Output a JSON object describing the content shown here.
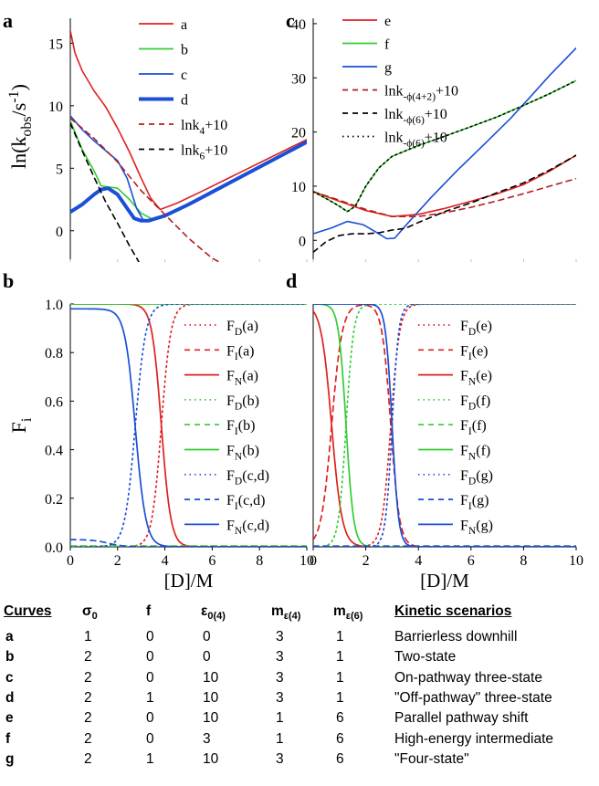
{
  "chart_data": [
    {
      "panel": "a",
      "type": "line",
      "ylabel": "ln(k",
      "ylabel_sub": "obs",
      "ylabel_tail": "/s",
      "ylabel_sup": "-1",
      "ylabel_close": ")",
      "xlim": [
        0,
        10
      ],
      "ylim": [
        -2.5,
        17
      ],
      "yticks": [
        "0",
        "5",
        "10",
        "15"
      ],
      "series": [
        {
          "name": "a",
          "color": "#e0201e",
          "dash": "solid",
          "width": 1.6,
          "x": [
            0,
            0.2,
            0.5,
            1,
            1.5,
            2,
            2.5,
            3,
            3.4,
            3.8,
            4.5,
            5.5,
            7,
            8.5,
            10
          ],
          "y": [
            16,
            14.2,
            12.8,
            11.2,
            9.9,
            8.2,
            6.3,
            4.2,
            2.6,
            1.7,
            2.2,
            3.1,
            4.5,
            5.9,
            7.3
          ]
        },
        {
          "name": "b",
          "color": "#33cc33",
          "dash": "solid",
          "width": 1.6,
          "x": [
            0,
            0.5,
            1,
            1.3,
            1.6,
            2.0,
            2.5,
            3,
            3.5,
            4,
            5,
            6,
            7,
            8.5,
            10
          ],
          "y": [
            8.8,
            6.5,
            4.8,
            3.6,
            3.5,
            3.4,
            2.5,
            1.4,
            0.9,
            1.2,
            2.2,
            3.1,
            4.1,
            5.6,
            7.1
          ]
        },
        {
          "name": "c",
          "color": "#1a4fd6",
          "dash": "solid",
          "width": 1.6,
          "x": [
            0,
            0.5,
            1,
            1.5,
            2,
            2.4,
            2.8,
            3.1,
            3.4,
            4,
            5,
            6,
            7,
            8.5,
            10
          ],
          "y": [
            9.2,
            8.1,
            7.2,
            6.4,
            5.6,
            4.2,
            1.8,
            0.8,
            0.8,
            1.2,
            2.1,
            3.1,
            4.1,
            5.6,
            7.1
          ]
        },
        {
          "name": "d",
          "color": "#1a4fd6",
          "dash": "solid",
          "width": 4,
          "x": [
            0,
            0.5,
            1,
            1.3,
            1.6,
            2,
            2.4,
            2.7,
            3,
            3.3,
            4,
            5,
            6,
            7,
            8.5,
            10
          ],
          "y": [
            1.5,
            2.1,
            2.9,
            3.3,
            3.4,
            2.9,
            1.8,
            1.0,
            0.8,
            0.8,
            1.2,
            2.1,
            3.1,
            4.1,
            5.6,
            7.1
          ]
        },
        {
          "name": "lnk₄+10",
          "color": "#b21f1f",
          "dash": "6,5",
          "width": 1.6,
          "x": [
            0,
            1,
            2,
            3,
            4,
            5,
            6,
            6.3
          ],
          "y": [
            9.0,
            7.4,
            5.5,
            3.2,
            1.3,
            -0.6,
            -2.2,
            -2.5
          ]
        },
        {
          "name": "lnk₆+10",
          "color": "#000000",
          "dash": "6,5",
          "width": 1.6,
          "x": [
            0,
            0.5,
            1,
            1.5,
            2,
            2.5,
            2.9
          ],
          "y": [
            8.6,
            6.4,
            4.3,
            2.3,
            0.6,
            -1.2,
            -2.5
          ]
        }
      ],
      "legend": [
        {
          "base": "a",
          "sub": "",
          "tail": ""
        },
        {
          "base": "b",
          "sub": "",
          "tail": ""
        },
        {
          "base": "c",
          "sub": "",
          "tail": ""
        },
        {
          "base": "d",
          "sub": "",
          "tail": ""
        },
        {
          "base": "lnk",
          "sub": "4",
          "tail": "+10"
        },
        {
          "base": "lnk",
          "sub": "6",
          "tail": "+10"
        }
      ]
    },
    {
      "panel": "c",
      "type": "line",
      "xlim": [
        0,
        10
      ],
      "ylim": [
        -4,
        41
      ],
      "yticks": [
        "0",
        "10",
        "20",
        "30",
        "40"
      ],
      "series": [
        {
          "name": "e",
          "color": "#e0201e",
          "dash": "solid",
          "width": 1.6,
          "x": [
            0,
            1,
            2,
            3,
            4,
            5,
            6,
            7,
            8,
            9,
            10
          ],
          "y": [
            9,
            7.2,
            5.5,
            4.4,
            4.8,
            5.9,
            7.2,
            8.6,
            10.3,
            12.8,
            15.7
          ]
        },
        {
          "name": "f",
          "color": "#33cc33",
          "dash": "solid",
          "width": 1.6,
          "x": [
            0,
            0.5,
            1,
            1.3,
            1.6,
            2,
            2.5,
            3,
            4,
            5,
            6,
            7,
            8,
            9,
            10
          ],
          "y": [
            9,
            7.7,
            6.3,
            5.3,
            6.3,
            10,
            13.4,
            15.5,
            17.5,
            19.2,
            21,
            22.8,
            24.9,
            27.1,
            29.5
          ]
        },
        {
          "name": "g",
          "color": "#1a4fd6",
          "dash": "solid",
          "width": 1.6,
          "x": [
            0,
            0.7,
            1.3,
            1.9,
            2.4,
            2.8,
            3.1,
            3.6,
            4.5,
            5.5,
            6.5,
            7.5,
            8.2,
            9,
            10
          ],
          "y": [
            1.2,
            2.3,
            3.5,
            2.9,
            1.5,
            0.3,
            0.4,
            3.2,
            8,
            13,
            17.7,
            22.5,
            26.2,
            30.5,
            35.5
          ]
        },
        {
          "name": "lnk-φ(4+2)+10",
          "color": "#b21f1f",
          "dash": "6,5",
          "width": 1.6,
          "x": [
            0,
            1,
            2,
            3,
            4,
            5,
            6,
            7,
            8,
            9,
            10
          ],
          "y": [
            9,
            7.4,
            5.7,
            4.4,
            4.4,
            5.1,
            6.1,
            7.3,
            8.6,
            10,
            11.4
          ]
        },
        {
          "name": "lnk-φ(6)+10",
          "color": "#000000",
          "dash": "6,5",
          "width": 1.6,
          "x": [
            0,
            0.5,
            1,
            1.5,
            2,
            2.5,
            3,
            3.5,
            4,
            5,
            6,
            7,
            8,
            9,
            10
          ],
          "y": [
            -2.2,
            -0.2,
            0.9,
            1.2,
            1.2,
            1.4,
            1.9,
            2.2,
            3.3,
            5.3,
            6.9,
            8.8,
            10.6,
            13,
            15.7
          ]
        },
        {
          "name": "lnk-φ(6)+10 (dotted)",
          "color": "#000000",
          "dash": "1.5,4",
          "width": 1.6,
          "x": [
            0,
            0.5,
            1,
            1.3,
            1.6,
            2,
            2.5,
            3,
            4,
            5,
            6,
            7,
            8,
            9,
            10
          ],
          "y": [
            9,
            7.7,
            6.3,
            5.3,
            6.3,
            10,
            13.4,
            15.5,
            17.5,
            19.2,
            21,
            22.8,
            24.9,
            27.1,
            29.5
          ]
        }
      ],
      "legend": [
        {
          "base": "e",
          "sub": "",
          "tail": ""
        },
        {
          "base": "f",
          "sub": "",
          "tail": ""
        },
        {
          "base": "g",
          "sub": "",
          "tail": ""
        },
        {
          "base": "lnk",
          "sub": "-ϕ(4+2)",
          "tail": "+10"
        },
        {
          "base": "lnk",
          "sub": "-ϕ(6)",
          "tail": "+10"
        },
        {
          "base": "lnk",
          "sub": "-ϕ(6)",
          "tail": "+10"
        }
      ]
    },
    {
      "panel": "b",
      "type": "line",
      "ylabel": "F",
      "ylabel_sub": "i",
      "xlabel": "[D]/M",
      "xlim": [
        0,
        10
      ],
      "ylim": [
        0,
        1
      ],
      "xticks": [
        "0",
        "2",
        "4",
        "6",
        "8",
        "10"
      ],
      "yticks": [
        "0.0",
        "0.2",
        "0.4",
        "0.6",
        "0.8",
        "1.0"
      ],
      "curves": [
        {
          "name": "FD(a)",
          "color": "#e0201e",
          "dash": "1.5,4",
          "kind": "up",
          "mid": 3.85,
          "k": 5
        },
        {
          "name": "FI(a)",
          "color": "#e0201e",
          "dash": "6,5",
          "kind": "zero"
        },
        {
          "name": "FN(a)",
          "color": "#e0201e",
          "dash": "solid",
          "kind": "down",
          "mid": 3.85,
          "k": 5
        },
        {
          "name": "FD(b)",
          "color": "#33cc33",
          "dash": "1.5,4",
          "kind": "zero"
        },
        {
          "name": "FI(b)",
          "color": "#33cc33",
          "dash": "6,5",
          "kind": "zero"
        },
        {
          "name": "FN(b)",
          "color": "#33cc33",
          "dash": "solid",
          "kind": "const",
          "val": 1.0
        },
        {
          "name": "FD(c,d)",
          "color": "#1a4fd6",
          "dash": "1.5,4",
          "kind": "up",
          "mid": 2.75,
          "k": 4.5
        },
        {
          "name": "FI(c,d)",
          "color": "#1a4fd6",
          "dash": "6,5",
          "kind": "decay",
          "start": 0.03,
          "mid": 1.6,
          "k": 3
        },
        {
          "name": "FN(c,d)",
          "color": "#1a4fd6",
          "dash": "solid",
          "kind": "down",
          "mid": 2.75,
          "k": 4.5,
          "start": 0.98
        }
      ],
      "legend": [
        {
          "base": "F",
          "sub": "D",
          "tail": "(a)"
        },
        {
          "base": "F",
          "sub": "I",
          "tail": "(a)"
        },
        {
          "base": "F",
          "sub": "N",
          "tail": "(a)"
        },
        {
          "base": "F",
          "sub": "D",
          "tail": "(b)"
        },
        {
          "base": "F",
          "sub": "I",
          "tail": "(b)"
        },
        {
          "base": "F",
          "sub": "N",
          "tail": "(b)"
        },
        {
          "base": "F",
          "sub": "D",
          "tail": "(c,d)"
        },
        {
          "base": "F",
          "sub": "I",
          "tail": "(c,d)"
        },
        {
          "base": "F",
          "sub": "N",
          "tail": "(c,d)"
        }
      ]
    },
    {
      "panel": "d",
      "type": "line",
      "xlabel": "[D]/M",
      "xlim": [
        0,
        10
      ],
      "ylim": [
        0,
        1
      ],
      "xticks": [
        "0",
        "2",
        "4",
        "6",
        "8",
        "10"
      ],
      "curves": [
        {
          "name": "FD(e)",
          "color": "#e0201e",
          "dash": "1.5,4",
          "kind": "up",
          "mid": 2.95,
          "k": 6
        },
        {
          "name": "FI(e)",
          "color": "#e0201e",
          "dash": "6,5",
          "kind": "bell",
          "up": 0.7,
          "down": 2.95,
          "k1": 5,
          "k2": 6
        },
        {
          "name": "FN(e)",
          "color": "#e0201e",
          "dash": "solid",
          "kind": "down",
          "mid": 0.7,
          "k": 5
        },
        {
          "name": "FD(f)",
          "color": "#33cc33",
          "dash": "1.5,4",
          "kind": "up",
          "mid": 1.25,
          "k": 7
        },
        {
          "name": "FI(f)",
          "color": "#33cc33",
          "dash": "6,5",
          "kind": "zero"
        },
        {
          "name": "FN(f)",
          "color": "#33cc33",
          "dash": "solid",
          "kind": "down",
          "mid": 1.25,
          "k": 7
        },
        {
          "name": "FD(g)",
          "color": "#1a4fd6",
          "dash": "1.5,4",
          "kind": "up",
          "mid": 3.0,
          "k": 8
        },
        {
          "name": "FI(g)",
          "color": "#1a4fd6",
          "dash": "6,5",
          "kind": "zero"
        },
        {
          "name": "FN(g)",
          "color": "#1a4fd6",
          "dash": "solid",
          "kind": "down",
          "mid": 3.0,
          "k": 8
        }
      ],
      "legend": [
        {
          "base": "F",
          "sub": "D",
          "tail": "(e)"
        },
        {
          "base": "F",
          "sub": "I",
          "tail": "(e)"
        },
        {
          "base": "F",
          "sub": "N",
          "tail": "(e)"
        },
        {
          "base": "F",
          "sub": "D",
          "tail": "(f)"
        },
        {
          "base": "F",
          "sub": "I",
          "tail": "(f)"
        },
        {
          "base": "F",
          "sub": "N",
          "tail": "(f)"
        },
        {
          "base": "F",
          "sub": "D",
          "tail": "(g)"
        },
        {
          "base": "F",
          "sub": "I",
          "tail": "(g)"
        },
        {
          "base": "F",
          "sub": "N",
          "tail": "(g)"
        }
      ]
    }
  ],
  "table": {
    "headers": [
      {
        "base": "Curves",
        "sub": "",
        "underline": true
      },
      {
        "base": "σ",
        "sub": "0",
        "underline": false
      },
      {
        "base": "f",
        "sub": "",
        "underline": false
      },
      {
        "base": "ε",
        "sub": "0(4)",
        "underline": false
      },
      {
        "base": "m",
        "sub": "ε(4)",
        "underline": false
      },
      {
        "base": "m",
        "sub": "ε(6)",
        "underline": false
      },
      {
        "base": "Kinetic scenarios",
        "sub": "",
        "underline": true
      }
    ],
    "rows": [
      [
        "a",
        "1",
        "0",
        "0",
        "3",
        "1",
        "Barrierless downhill"
      ],
      [
        "b",
        "2",
        "0",
        "0",
        "3",
        "1",
        "Two-state"
      ],
      [
        "c",
        "2",
        "0",
        "10",
        "3",
        "1",
        "On-pathway three-state"
      ],
      [
        "d",
        "2",
        "1",
        "10",
        "3",
        "1",
        "\"Off-pathway\" three-state"
      ],
      [
        "e",
        "2",
        "0",
        "10",
        "1",
        "6",
        "Parallel pathway shift"
      ],
      [
        "f",
        "2",
        "0",
        "3",
        "1",
        "6",
        "High-energy intermediate"
      ],
      [
        "g",
        "2",
        "1",
        "10",
        "3",
        "6",
        "\"Four-state\""
      ]
    ]
  }
}
